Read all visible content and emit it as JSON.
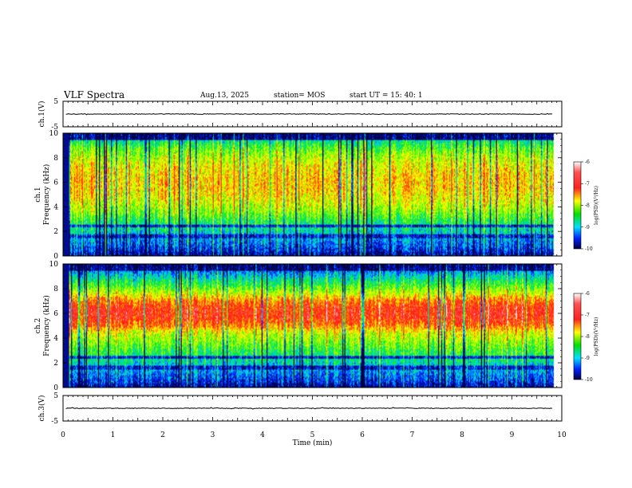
{
  "header": {
    "title": "VLF Spectra",
    "date": "Aug.13, 2025",
    "station": "station= MOS",
    "start_ut": "start  UT  =   15: 40: 1"
  },
  "chart_data": [
    {
      "id": "ch1-waveform",
      "type": "line",
      "ylabel": "ch.1(V)",
      "ylim": [
        -5,
        5
      ],
      "y_ticks": [
        "5",
        "-5"
      ],
      "baseline_value": 0
    },
    {
      "id": "ch1-spectrogram",
      "type": "heatmap",
      "ylabel": "ch.1\nFrequency (kHz)",
      "ylim": [
        0,
        10
      ],
      "y_ticks": [
        "0",
        "2",
        "4",
        "6",
        "8",
        "10"
      ],
      "xlim": [
        0,
        10
      ],
      "colorbar": {
        "label": "log(PSD)(V²/Hz)",
        "range": [
          -10,
          -6
        ],
        "ticks": [
          "-6",
          "-7",
          "-8",
          "-9",
          "-10"
        ]
      },
      "dominant_band_khz": [
        3,
        9
      ],
      "peak_level": -7.5
    },
    {
      "id": "ch2-spectrogram",
      "type": "heatmap",
      "ylabel": "ch.2\nFrequency (kHz)",
      "ylim": [
        0,
        10
      ],
      "y_ticks": [
        "0",
        "2",
        "4",
        "6",
        "8",
        "10"
      ],
      "xlim": [
        0,
        10
      ],
      "colorbar": {
        "label": "log(PSD)(V²/Hz)",
        "range": [
          -10,
          -6
        ],
        "ticks": [
          "-6",
          "-7",
          "-8",
          "-9",
          "-10"
        ]
      },
      "dominant_band_khz": [
        4.5,
        7.5
      ],
      "peak_level": -6.8
    },
    {
      "id": "ch3-waveform",
      "type": "line",
      "ylabel": "ch.3(V)",
      "ylim": [
        -5,
        5
      ],
      "y_ticks": [
        "5",
        "-5"
      ],
      "baseline_value": 0
    }
  ],
  "x_axis": {
    "label": "Time  (min)",
    "range": [
      0,
      10
    ],
    "ticks": [
      "0",
      "1",
      "2",
      "3",
      "4",
      "5",
      "6",
      "7",
      "8",
      "9",
      "10"
    ],
    "data_end": 9.83
  },
  "colors": {
    "frame": "#000000",
    "background": "#ffffff"
  }
}
